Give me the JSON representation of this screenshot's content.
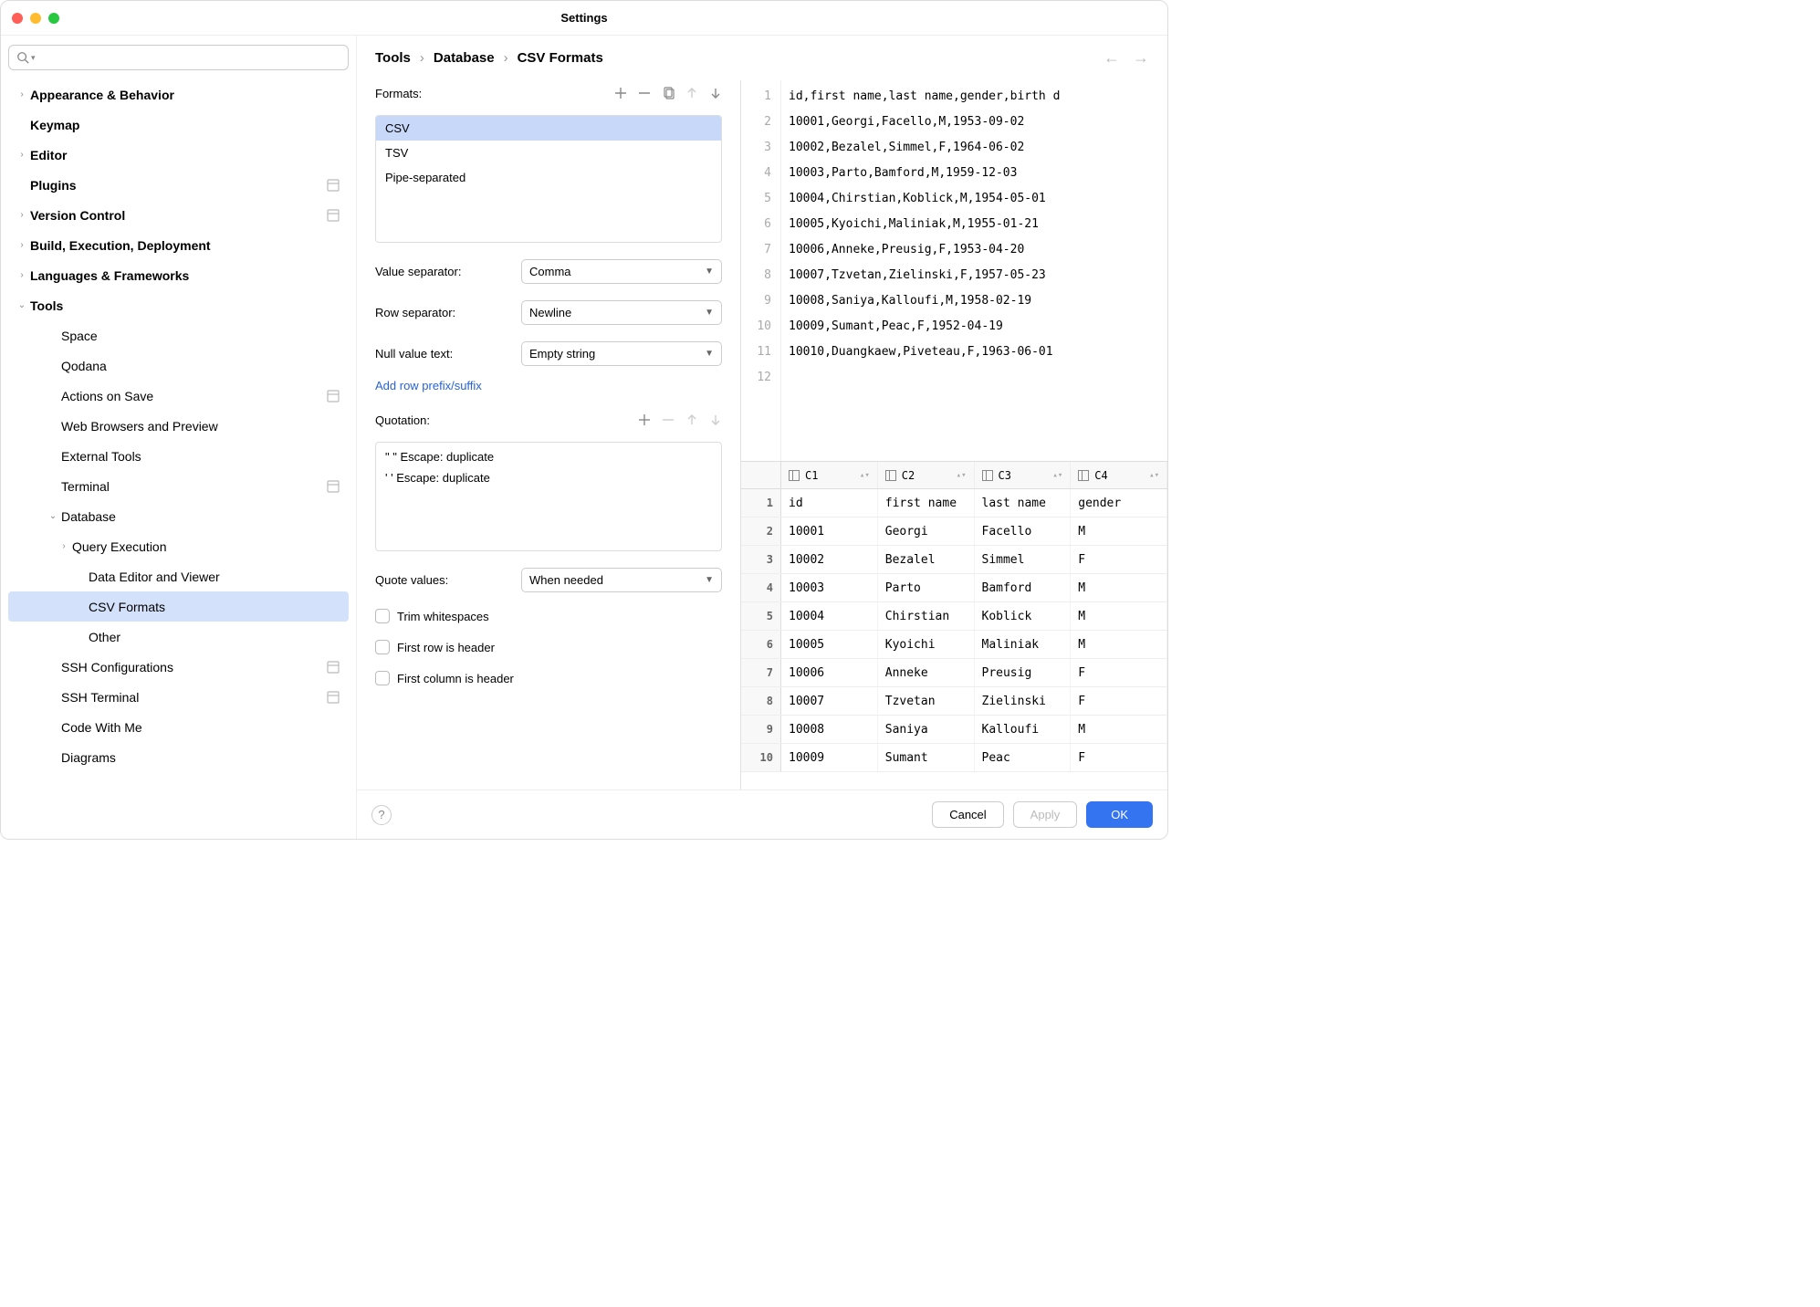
{
  "window": {
    "title": "Settings"
  },
  "breadcrumb": {
    "parts": [
      "Tools",
      "Database",
      "CSV Formats"
    ]
  },
  "sidebar": {
    "search_placeholder": "",
    "items": [
      {
        "label": "Appearance & Behavior",
        "bold": true,
        "chevron": ">",
        "badge": false
      },
      {
        "label": "Keymap",
        "bold": true,
        "chevron": "",
        "badge": false
      },
      {
        "label": "Editor",
        "bold": true,
        "chevron": ">",
        "badge": false
      },
      {
        "label": "Plugins",
        "bold": true,
        "chevron": "",
        "badge": true
      },
      {
        "label": "Version Control",
        "bold": true,
        "chevron": ">",
        "badge": true
      },
      {
        "label": "Build, Execution, Deployment",
        "bold": true,
        "chevron": ">",
        "badge": false
      },
      {
        "label": "Languages & Frameworks",
        "bold": true,
        "chevron": ">",
        "badge": false
      },
      {
        "label": "Tools",
        "bold": true,
        "chevron": "v",
        "badge": false
      },
      {
        "label": "Space",
        "bold": false,
        "chevron": "",
        "indent": 1
      },
      {
        "label": "Qodana",
        "bold": false,
        "chevron": "",
        "indent": 1
      },
      {
        "label": "Actions on Save",
        "bold": false,
        "chevron": "",
        "indent": 1,
        "badge": true
      },
      {
        "label": "Web Browsers and Preview",
        "bold": false,
        "chevron": "",
        "indent": 1
      },
      {
        "label": "External Tools",
        "bold": false,
        "chevron": "",
        "indent": 1
      },
      {
        "label": "Terminal",
        "bold": false,
        "chevron": "",
        "indent": 1,
        "badge": true
      },
      {
        "label": "Database",
        "bold": false,
        "chevron": "v",
        "indent": 1
      },
      {
        "label": "Query Execution",
        "bold": false,
        "chevron": ">",
        "indent": 2
      },
      {
        "label": "Data Editor and Viewer",
        "bold": false,
        "chevron": "",
        "indent": 3
      },
      {
        "label": "CSV Formats",
        "bold": false,
        "chevron": "",
        "indent": 3,
        "selected": true
      },
      {
        "label": "Other",
        "bold": false,
        "chevron": "",
        "indent": 3
      },
      {
        "label": "SSH Configurations",
        "bold": false,
        "chevron": "",
        "indent": 1,
        "badge": true
      },
      {
        "label": "SSH Terminal",
        "bold": false,
        "chevron": "",
        "indent": 1,
        "badge": true
      },
      {
        "label": "Code With Me",
        "bold": false,
        "chevron": "",
        "indent": 1
      },
      {
        "label": "Diagrams",
        "bold": false,
        "chevron": "",
        "indent": 1
      }
    ]
  },
  "formats": {
    "label": "Formats:",
    "items": [
      "CSV",
      "TSV",
      "Pipe-separated"
    ],
    "selected_index": 0
  },
  "fields": {
    "value_sep_label": "Value separator:",
    "value_sep_value": "Comma",
    "row_sep_label": "Row separator:",
    "row_sep_value": "Newline",
    "null_text_label": "Null value text:",
    "null_text_value": "Empty string",
    "add_prefix_link": "Add row prefix/suffix",
    "quotation_label": "Quotation:",
    "quotation_items": [
      "\" \"  Escape: duplicate",
      "' '  Escape: duplicate"
    ],
    "quote_values_label": "Quote values:",
    "quote_values_value": "When needed",
    "cb_trim": "Trim whitespaces",
    "cb_first_row": "First row is header",
    "cb_first_col": "First column is header"
  },
  "preview": {
    "lines": [
      "id,first name,last name,gender,birth d",
      "10001,Georgi,Facello,M,1953-09-02",
      "10002,Bezalel,Simmel,F,1964-06-02",
      "10003,Parto,Bamford,M,1959-12-03",
      "10004,Chirstian,Koblick,M,1954-05-01",
      "10005,Kyoichi,Maliniak,M,1955-01-21",
      "10006,Anneke,Preusig,F,1953-04-20",
      "10007,Tzvetan,Zielinski,F,1957-05-23",
      "10008,Saniya,Kalloufi,M,1958-02-19",
      "10009,Sumant,Peac,F,1952-04-19",
      "10010,Duangkaew,Piveteau,F,1963-06-01",
      ""
    ]
  },
  "table": {
    "columns": [
      "C1",
      "C2",
      "C3",
      "C4"
    ],
    "rows": [
      [
        "id",
        "first name",
        "last name",
        "gender"
      ],
      [
        "10001",
        "Georgi",
        "Facello",
        "M"
      ],
      [
        "10002",
        "Bezalel",
        "Simmel",
        "F"
      ],
      [
        "10003",
        "Parto",
        "Bamford",
        "M"
      ],
      [
        "10004",
        "Chirstian",
        "Koblick",
        "M"
      ],
      [
        "10005",
        "Kyoichi",
        "Maliniak",
        "M"
      ],
      [
        "10006",
        "Anneke",
        "Preusig",
        "F"
      ],
      [
        "10007",
        "Tzvetan",
        "Zielinski",
        "F"
      ],
      [
        "10008",
        "Saniya",
        "Kalloufi",
        "M"
      ],
      [
        "10009",
        "Sumant",
        "Peac",
        "F"
      ]
    ]
  },
  "footer": {
    "cancel": "Cancel",
    "apply": "Apply",
    "ok": "OK"
  },
  "colors": {
    "selection": "#d3e1fb",
    "format_selection": "#c7d8f9",
    "primary": "#3574f0",
    "link": "#2863d6"
  }
}
